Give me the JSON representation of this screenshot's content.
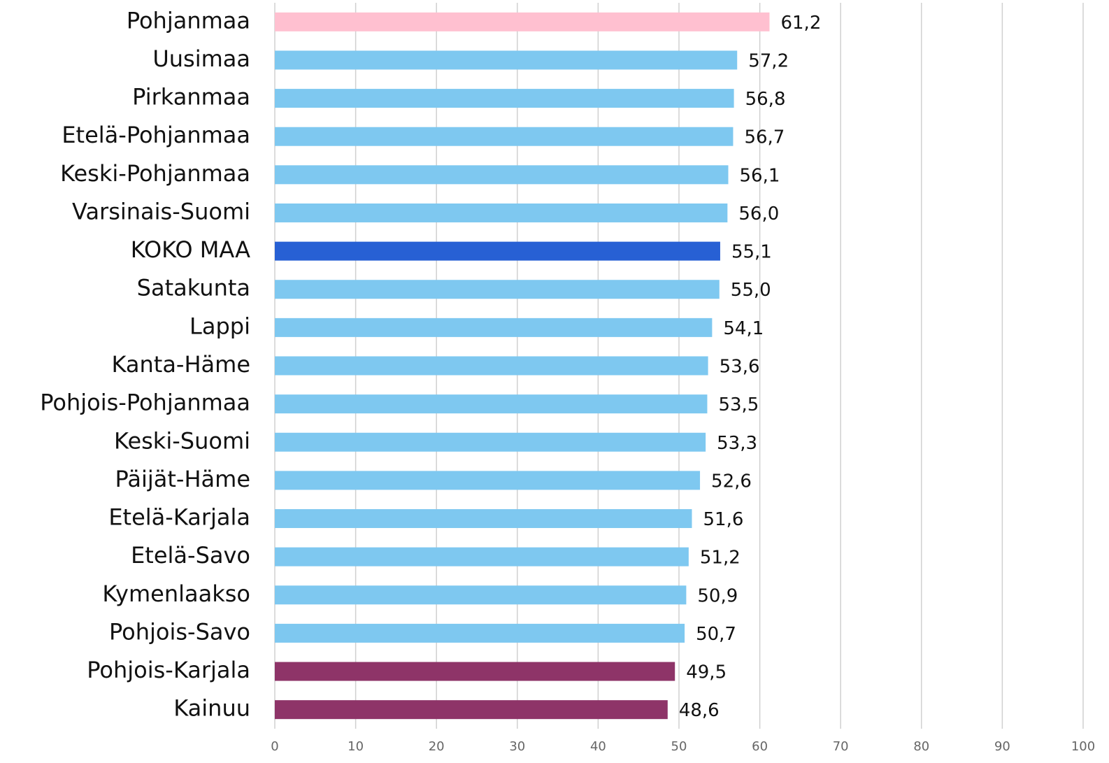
{
  "chart_data": {
    "type": "hbar",
    "categories": [
      "Pohjanmaa",
      "Uusimaa",
      "Pirkanmaa",
      "Etelä-Pohjanmaa",
      "Keski-Pohjanmaa",
      "Varsinais-Suomi",
      "KOKO MAA",
      "Satakunta",
      "Lappi",
      "Kanta-Häme",
      "Pohjois-Pohjanmaa",
      "Keski-Suomi",
      "Päijät-Häme",
      "Etelä-Karjala",
      "Etelä-Savo",
      "Kymenlaakso",
      "Pohjois-Savo",
      "Pohjois-Karjala",
      "Kainuu"
    ],
    "values": [
      61.2,
      57.2,
      56.8,
      56.7,
      56.1,
      56.0,
      55.1,
      55.0,
      54.1,
      53.6,
      53.5,
      53.3,
      52.6,
      51.6,
      51.2,
      50.9,
      50.7,
      49.5,
      48.6
    ],
    "value_labels": [
      "61,2",
      "57,2",
      "56,8",
      "56,7",
      "56,1",
      "56,0",
      "55,1",
      "55,0",
      "54,1",
      "53,6",
      "53,5",
      "53,3",
      "52,6",
      "51,6",
      "51,2",
      "50,9",
      "50,7",
      "49,5",
      "48,6"
    ],
    "colors": [
      "#ffc0d0",
      "#7ec8f0",
      "#7ec8f0",
      "#7ec8f0",
      "#7ec8f0",
      "#7ec8f0",
      "#2760d4",
      "#7ec8f0",
      "#7ec8f0",
      "#7ec8f0",
      "#7ec8f0",
      "#7ec8f0",
      "#7ec8f0",
      "#7ec8f0",
      "#7ec8f0",
      "#7ec8f0",
      "#7ec8f0",
      "#8e3468",
      "#8e3468"
    ],
    "xlim": [
      0,
      100
    ],
    "xticks": [
      0,
      10,
      20,
      30,
      40,
      50,
      60,
      70,
      80,
      90,
      100
    ],
    "grid": true
  }
}
